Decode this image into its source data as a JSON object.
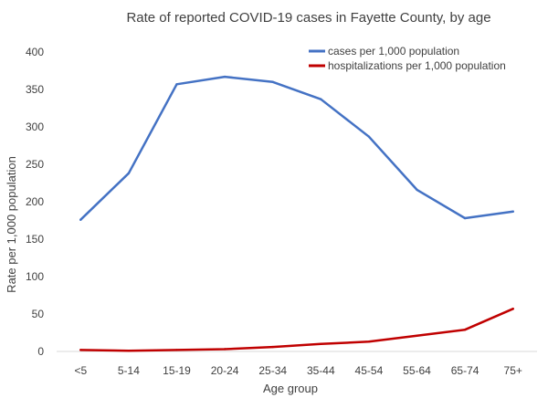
{
  "chart_data": {
    "type": "line",
    "title": "Rate of reported COVID-19 cases in Fayette County, by age",
    "xlabel": "Age group",
    "ylabel": "Rate per 1,000 population",
    "categories": [
      "<5",
      "5-14",
      "15-19",
      "20-24",
      "25-34",
      "35-44",
      "45-54",
      "55-64",
      "65-74",
      "75+"
    ],
    "ylim": [
      0,
      400
    ],
    "yticks": [
      0,
      50,
      100,
      150,
      200,
      250,
      300,
      350,
      400
    ],
    "ytick_labels": [
      "0",
      "50",
      "100",
      "150",
      "200",
      "250",
      "300",
      "350",
      "400"
    ],
    "grid": false,
    "legend_position": "top-right",
    "series": [
      {
        "name": "cases per 1,000 population",
        "color": "#4472c4",
        "values": [
          176,
          238,
          357,
          367,
          360,
          337,
          287,
          216,
          178,
          187
        ]
      },
      {
        "name": "hospitalizations per 1,000 population",
        "color": "#c00000",
        "values": [
          2,
          1,
          2,
          3,
          6,
          10,
          13,
          21,
          29,
          57
        ]
      }
    ]
  }
}
